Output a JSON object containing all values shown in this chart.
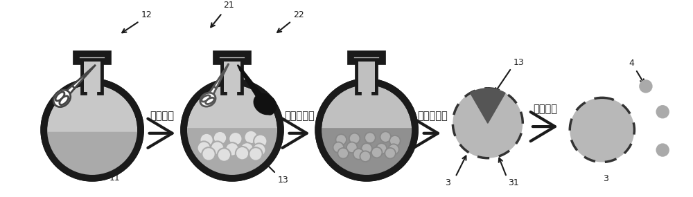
{
  "bg_color": "#ffffff",
  "outline_color": "#1a1a1a",
  "flask_gray": "#b0b0b0",
  "flask_dark": "#333333",
  "liquid_gray": "#999999",
  "liquid_light": "#aaaaaa",
  "particle_white": "#e8e8e8",
  "particle_outline": "#999999",
  "particle_dark": "#888888",
  "particle_dark_outline": "#666666",
  "dashed_circle_fill": "#b8b8b8",
  "dashed_outline": "#333333",
  "small_dot_color": "#aaaaaa",
  "dark_cap": "#555555",
  "labels": {
    "step1": "反溶剂法",
    "step2": "溶胶凝胶法",
    "step3": "过滤、干燥",
    "step4": "水泥液相"
  },
  "num_11": "11",
  "num_12": "12",
  "num_13": "13",
  "num_21": "21",
  "num_22": "22",
  "num_3a": "3",
  "num_31": "31",
  "num_3b": "3",
  "num_4": "4"
}
